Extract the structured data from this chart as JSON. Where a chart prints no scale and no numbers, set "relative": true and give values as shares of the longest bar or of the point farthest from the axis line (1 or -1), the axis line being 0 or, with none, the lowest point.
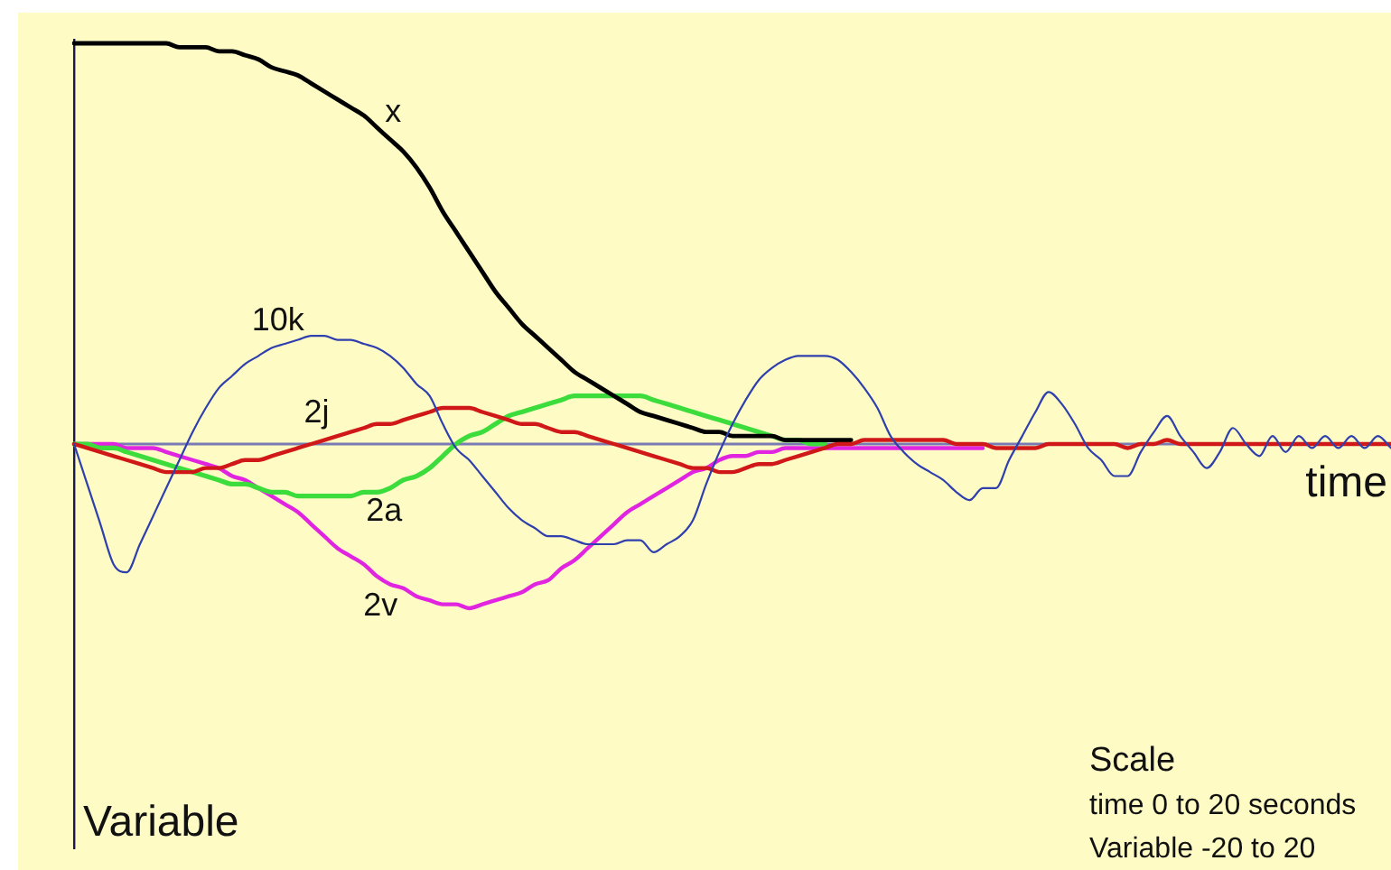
{
  "chart_data": {
    "type": "line",
    "relative": true,
    "xlabel": "time",
    "annotations": [
      "Variable",
      "Scale",
      "time 0 to 20 seconds",
      "Variable -20 to 20"
    ],
    "categories": [
      null,
      null,
      null,
      null,
      null,
      null,
      null,
      null,
      null,
      null,
      null,
      null,
      null,
      null,
      null,
      null,
      null,
      null,
      null,
      null,
      null,
      null,
      null,
      null,
      null,
      null,
      null,
      null,
      null,
      null,
      null,
      null,
      null,
      null,
      null,
      null,
      null,
      null,
      null,
      null,
      null,
      null,
      null,
      null,
      null,
      null,
      null,
      null,
      null,
      null,
      null,
      null,
      null,
      null,
      null,
      null,
      null,
      null,
      null,
      null,
      null,
      null,
      null,
      null,
      null,
      null,
      null,
      null,
      null,
      null,
      null,
      null,
      null,
      null,
      null,
      null,
      null,
      null,
      null,
      null,
      null,
      null,
      null,
      null,
      null,
      null,
      null,
      null,
      null,
      null,
      null,
      null,
      null,
      null,
      null,
      null,
      null,
      null,
      null,
      null,
      null
    ],
    "series": [
      {
        "name": "x",
        "color": "#000000",
        "values": [
          1,
          1,
          1,
          1,
          1,
          1,
          1,
          1,
          0.99,
          0.99,
          0.99,
          0.98,
          0.98,
          0.97,
          0.96,
          0.94,
          0.93,
          0.92,
          0.9,
          0.88,
          0.86,
          0.84,
          0.82,
          0.79,
          0.76,
          0.73,
          0.69,
          0.64,
          0.58,
          0.53,
          0.48,
          0.43,
          0.38,
          0.34,
          0.3,
          0.27,
          0.24,
          0.21,
          0.18,
          0.16,
          0.14,
          0.12,
          0.1,
          0.08,
          0.07,
          0.06,
          0.05,
          0.04,
          0.03,
          0.03,
          0.02,
          0.02,
          0.02,
          0.02,
          0.01,
          0.01,
          0.01,
          0.01,
          0.01,
          0.01,
          null,
          null,
          null,
          null,
          null,
          null,
          null,
          null,
          null,
          null,
          null,
          null,
          null,
          null,
          null,
          null,
          null,
          null,
          null,
          null,
          null,
          null,
          null,
          null,
          null,
          null,
          null,
          null,
          null,
          null,
          null,
          null,
          null,
          null,
          null,
          null,
          null,
          null,
          null,
          null,
          null
        ]
      },
      {
        "name": "10k",
        "color": "#2f3fae",
        "values": [
          0,
          -0.1,
          -0.2,
          -0.3,
          -0.32,
          -0.25,
          -0.18,
          -0.11,
          -0.04,
          0.03,
          0.09,
          0.14,
          0.17,
          0.2,
          0.22,
          0.24,
          0.25,
          0.26,
          0.27,
          0.27,
          0.26,
          0.26,
          0.25,
          0.24,
          0.22,
          0.19,
          0.15,
          0.12,
          0.05,
          -0.01,
          -0.04,
          -0.08,
          -0.12,
          -0.16,
          -0.19,
          -0.21,
          -0.23,
          -0.23,
          -0.24,
          -0.25,
          -0.25,
          -0.25,
          -0.24,
          -0.24,
          -0.27,
          -0.25,
          -0.23,
          -0.19,
          -0.1,
          -0.02,
          0.05,
          0.11,
          0.16,
          0.19,
          0.21,
          0.22,
          0.22,
          0.22,
          0.21,
          0.18,
          0.14,
          0.09,
          0.02,
          -0.02,
          -0.05,
          -0.07,
          -0.09,
          -0.12,
          -0.14,
          -0.11,
          -0.11,
          -0.04,
          0.02,
          0.08,
          0.13,
          0.1,
          0.05,
          -0.01,
          -0.04,
          -0.08,
          -0.08,
          -0.02,
          0.03,
          0.07,
          0.02,
          -0.02,
          -0.06,
          -0.02,
          0.04,
          0,
          -0.03,
          0.02,
          -0.02,
          0.02,
          -0.01,
          0.02,
          -0.01,
          0.02,
          -0.01,
          0.02,
          -0.01
        ]
      },
      {
        "name": "2j",
        "color": "#d01818",
        "values": [
          0,
          -0.01,
          -0.02,
          -0.03,
          -0.04,
          -0.05,
          -0.06,
          -0.07,
          -0.07,
          -0.07,
          -0.06,
          -0.06,
          -0.05,
          -0.04,
          -0.04,
          -0.03,
          -0.02,
          -0.01,
          0,
          0.01,
          0.02,
          0.03,
          0.04,
          0.05,
          0.05,
          0.06,
          0.07,
          0.08,
          0.09,
          0.09,
          0.09,
          0.08,
          0.07,
          0.06,
          0.05,
          0.05,
          0.04,
          0.03,
          0.03,
          0.02,
          0.01,
          0,
          -0.01,
          -0.02,
          -0.03,
          -0.04,
          -0.05,
          -0.06,
          -0.06,
          -0.07,
          -0.07,
          -0.06,
          -0.05,
          -0.05,
          -0.04,
          -0.03,
          -0.02,
          -0.01,
          0,
          0,
          0.01,
          0.01,
          0.01,
          0.01,
          0.01,
          0.01,
          0.01,
          0,
          0,
          0,
          -0.01,
          -0.01,
          -0.01,
          -0.01,
          0,
          0,
          0,
          0,
          0,
          0,
          -0.01,
          0,
          0,
          0.01,
          0,
          0,
          0,
          0,
          0,
          0,
          0,
          0,
          0,
          0,
          0,
          0,
          0,
          0,
          0,
          0,
          0
        ]
      },
      {
        "name": "2a",
        "color": "#3cdc3c",
        "values": [
          0,
          0,
          -0.01,
          -0.01,
          -0.02,
          -0.03,
          -0.04,
          -0.05,
          -0.06,
          -0.07,
          -0.08,
          -0.09,
          -0.1,
          -0.1,
          -0.11,
          -0.12,
          -0.12,
          -0.13,
          -0.13,
          -0.13,
          -0.13,
          -0.13,
          -0.12,
          -0.12,
          -0.11,
          -0.09,
          -0.08,
          -0.06,
          -0.03,
          0,
          0.02,
          0.03,
          0.05,
          0.07,
          0.08,
          0.09,
          0.1,
          0.11,
          0.12,
          0.12,
          0.12,
          0.12,
          0.12,
          0.12,
          0.11,
          0.1,
          0.09,
          0.08,
          0.07,
          0.06,
          0.05,
          0.04,
          0.03,
          0.02,
          0.01,
          0.01,
          0,
          0,
          null,
          null,
          null,
          null,
          null,
          null,
          null,
          null,
          null,
          null,
          null,
          null,
          null,
          null,
          null,
          null,
          null,
          null,
          null,
          null,
          null,
          null,
          null,
          null,
          null,
          null,
          null,
          null,
          null,
          null,
          null,
          null,
          null,
          null,
          null,
          null,
          null,
          null,
          null,
          null,
          null,
          null,
          null
        ]
      },
      {
        "name": "2v",
        "color": "#e024e0",
        "values": [
          0,
          0,
          0,
          0,
          -0.01,
          -0.01,
          -0.01,
          -0.02,
          -0.03,
          -0.04,
          -0.05,
          -0.06,
          -0.08,
          -0.09,
          -0.11,
          -0.13,
          -0.15,
          -0.17,
          -0.2,
          -0.23,
          -0.26,
          -0.28,
          -0.3,
          -0.33,
          -0.35,
          -0.36,
          -0.38,
          -0.39,
          -0.4,
          -0.4,
          -0.41,
          -0.4,
          -0.39,
          -0.38,
          -0.37,
          -0.35,
          -0.34,
          -0.31,
          -0.29,
          -0.26,
          -0.23,
          -0.2,
          -0.17,
          -0.15,
          -0.13,
          -0.11,
          -0.09,
          -0.07,
          -0.06,
          -0.04,
          -0.03,
          -0.03,
          -0.02,
          -0.02,
          -0.01,
          -0.01,
          -0.01,
          -0.01,
          -0.01,
          -0.01,
          -0.01,
          -0.01,
          -0.01,
          -0.01,
          -0.01,
          -0.01,
          -0.01,
          -0.01,
          -0.01,
          -0.01,
          null,
          null,
          null,
          null,
          null,
          null,
          null,
          null,
          null,
          null,
          null,
          null,
          null,
          null,
          null,
          null,
          null,
          null,
          null,
          null,
          null,
          null,
          null,
          null,
          null,
          null,
          null,
          null,
          null,
          null,
          null
        ]
      }
    ],
    "ref_lines": [
      {
        "axis": "y",
        "value": 0,
        "color": "#7a7ab4"
      }
    ],
    "legend": false,
    "grid": false,
    "marker": "none",
    "line_style": "solid"
  }
}
